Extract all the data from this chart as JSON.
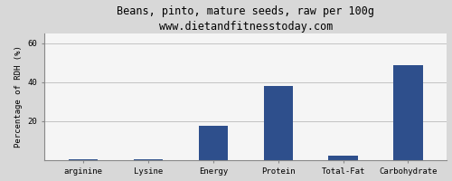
{
  "title": "Beans, pinto, mature seeds, raw per 100g",
  "subtitle": "www.dietandfitnesstoday.com",
  "categories": [
    "arginine",
    "Lysine",
    "Energy",
    "Protein",
    "Total-Fat",
    "Carbohydrate"
  ],
  "values": [
    0.5,
    0.3,
    17.5,
    38.0,
    2.5,
    48.5
  ],
  "bar_color": "#2e4f8c",
  "ylabel": "Percentage of RDH (%)",
  "ylim": [
    0,
    65
  ],
  "yticks": [
    20,
    40,
    60
  ],
  "background_color": "#d8d8d8",
  "plot_bg_color": "#f5f5f5",
  "title_fontsize": 8.5,
  "subtitle_fontsize": 7.5,
  "ylabel_fontsize": 6.5,
  "tick_fontsize": 6.5,
  "grid_color": "#bbbbbb"
}
